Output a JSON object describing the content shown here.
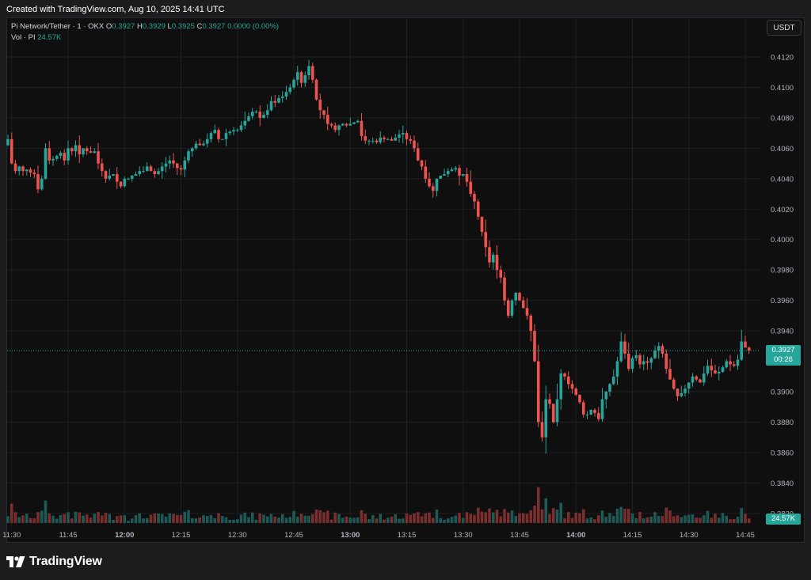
{
  "header": {
    "created": "Created with TradingView.com, Aug 10, 2025 14:41 UTC"
  },
  "legend": {
    "symbol": "Pi Network/Tether · 1 · OKX",
    "o_label": "O",
    "o": "0.3927",
    "h_label": "H",
    "h": "0.3929",
    "l_label": "L",
    "l": "0.3925",
    "c_label": "C",
    "c": "0.3927",
    "change": "0.0000 (0.00%)",
    "vol_label": "Vol · PI",
    "vol": "24.57K"
  },
  "currency_button": "USDT",
  "price_tag": {
    "price": "0.3927",
    "countdown": "00:26"
  },
  "volume_tag": "24.57K",
  "brand": "TradingView",
  "colors": {
    "up": "#26a69a",
    "down": "#ef5350",
    "background": "#0f0f0f"
  },
  "chart_data": {
    "type": "candlestick",
    "interval": "1 minute",
    "y_ticks": [
      "0.4120",
      "0.4100",
      "0.4080",
      "0.4060",
      "0.4040",
      "0.4020",
      "0.4000",
      "0.3980",
      "0.3960",
      "0.3940",
      "0.3900",
      "0.3880",
      "0.3860",
      "0.3840",
      "0.3820"
    ],
    "ylim": [
      0.3815,
      0.4135
    ],
    "x_ticks": [
      {
        "label": "11:30",
        "bold": false
      },
      {
        "label": "11:45",
        "bold": false
      },
      {
        "label": "12:00",
        "bold": true
      },
      {
        "label": "12:15",
        "bold": false
      },
      {
        "label": "12:30",
        "bold": false
      },
      {
        "label": "12:45",
        "bold": false
      },
      {
        "label": "13:00",
        "bold": true
      },
      {
        "label": "13:15",
        "bold": false
      },
      {
        "label": "13:30",
        "bold": false
      },
      {
        "label": "13:45",
        "bold": false
      },
      {
        "label": "14:00",
        "bold": true
      },
      {
        "label": "14:15",
        "bold": false
      },
      {
        "label": "14:30",
        "bold": false
      },
      {
        "label": "14:45",
        "bold": false
      }
    ],
    "time_start": "11:29",
    "grid": true,
    "last_price": 0.3927,
    "closes": [
      0.4066,
      0.405,
      0.4045,
      0.4048,
      0.4045,
      0.4046,
      0.4044,
      0.4043,
      0.4033,
      0.404,
      0.406,
      0.4052,
      0.4053,
      0.4055,
      0.4057,
      0.4052,
      0.406,
      0.4058,
      0.4062,
      0.4056,
      0.406,
      0.4058,
      0.4057,
      0.4058,
      0.405,
      0.4045,
      0.404,
      0.4042,
      0.4043,
      0.4038,
      0.4035,
      0.404,
      0.404,
      0.4042,
      0.4043,
      0.4045,
      0.4045,
      0.4048,
      0.4045,
      0.4043,
      0.4045,
      0.4048,
      0.405,
      0.4052,
      0.405,
      0.4047,
      0.4046,
      0.4052,
      0.4058,
      0.406,
      0.4063,
      0.4062,
      0.4063,
      0.4066,
      0.407,
      0.4072,
      0.4066,
      0.4066,
      0.407,
      0.4071,
      0.4072,
      0.4072,
      0.4075,
      0.4078,
      0.4081,
      0.4084,
      0.4084,
      0.408,
      0.4082,
      0.4085,
      0.4091,
      0.409,
      0.4093,
      0.4094,
      0.4097,
      0.41,
      0.4105,
      0.411,
      0.4103,
      0.4108,
      0.4114,
      0.4105,
      0.4092,
      0.4085,
      0.4082,
      0.4076,
      0.4075,
      0.4072,
      0.4075,
      0.4076,
      0.4075,
      0.4076,
      0.4077,
      0.4078,
      0.4068,
      0.4065,
      0.4065,
      0.4065,
      0.4064,
      0.4067,
      0.4066,
      0.4066,
      0.4065,
      0.4067,
      0.4069,
      0.407,
      0.4066,
      0.4065,
      0.406,
      0.4052,
      0.4048,
      0.404,
      0.4035,
      0.4032,
      0.404,
      0.4042,
      0.4043,
      0.4045,
      0.4046,
      0.4047,
      0.4042,
      0.4043,
      0.4038,
      0.403,
      0.4025,
      0.4015,
      0.4005,
      0.3995,
      0.3985,
      0.399,
      0.398,
      0.3975,
      0.396,
      0.395,
      0.396,
      0.3965,
      0.396,
      0.3955,
      0.395,
      0.394,
      0.392,
      0.388,
      0.387,
      0.3895,
      0.3892,
      0.388,
      0.3895,
      0.3912,
      0.391,
      0.3905,
      0.3902,
      0.3898,
      0.3893,
      0.3885,
      0.3885,
      0.3888,
      0.3886,
      0.3882,
      0.3895,
      0.39,
      0.3905,
      0.391,
      0.392,
      0.3933,
      0.3925,
      0.3915,
      0.3922,
      0.3924,
      0.3918,
      0.392,
      0.3919,
      0.3922,
      0.3927,
      0.393,
      0.3925,
      0.3915,
      0.3908,
      0.3902,
      0.3897,
      0.3899,
      0.3902,
      0.3906,
      0.391,
      0.3908,
      0.3906,
      0.3912,
      0.3917,
      0.3914,
      0.3912,
      0.3913,
      0.3916,
      0.392,
      0.3918,
      0.3917,
      0.3921,
      0.3933,
      0.3929,
      0.3927
    ],
    "volume_scale": "relative"
  }
}
